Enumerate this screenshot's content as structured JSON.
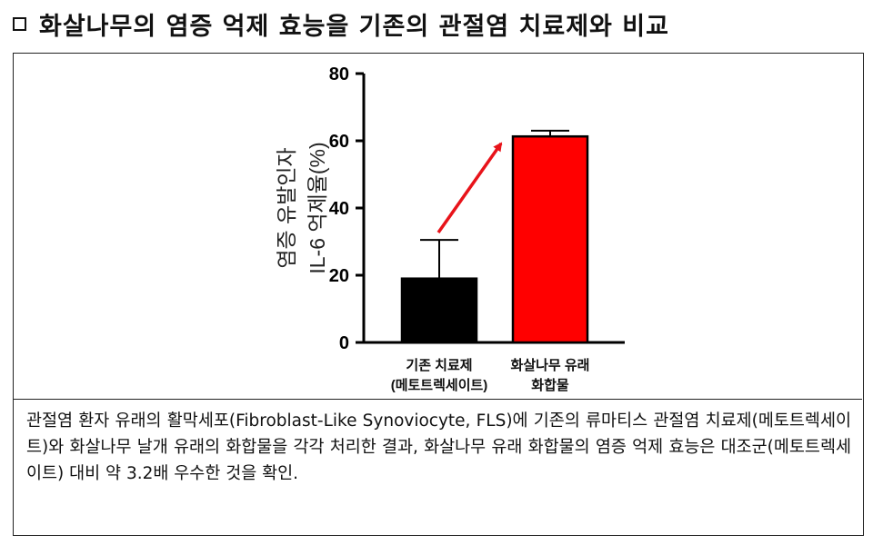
{
  "header": {
    "title": "화살나무의 염증 억제 효능을 기존의 관절염 치료제와 비교"
  },
  "chart_data": {
    "type": "bar",
    "categories": [
      [
        "기존 치료제",
        "(메토트렉세이트)"
      ],
      [
        "화살나무 유래",
        "화합물"
      ]
    ],
    "values": [
      19,
      61.3
    ],
    "errors": [
      11.5,
      1.7
    ],
    "bar_colors": [
      "#000000",
      "#ff0000"
    ],
    "ylabel_line1": "염증 유발인자",
    "ylabel_line2": "IL-6 억제율(%)",
    "ylim": [
      0,
      80
    ],
    "yticks": [
      0,
      20,
      40,
      60,
      80
    ],
    "arrow_color": "#e8131a",
    "grid": false
  },
  "caption": {
    "text": "관절염 환자 유래의 활막세포(Fibroblast-Like Synoviocyte, FLS)에 기존의 류마티스 관절염 치료제(메토트렉세이트)와 화살나무 날개 유래의 화합물을 각각 처리한 결과, 화살나무 유래 화합물의 염증 억제 효능은 대조군(메토트렉세이트) 대비 약 3.2배 우수한 것을 확인."
  }
}
